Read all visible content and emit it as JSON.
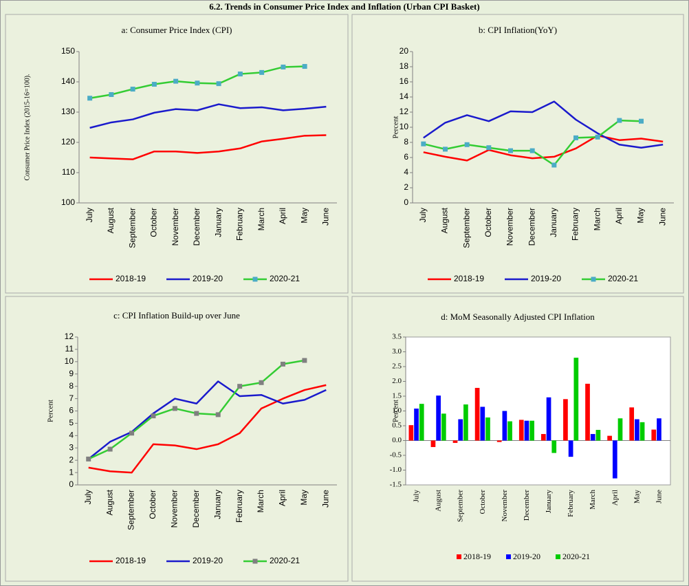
{
  "title": "6.2. Trends in Consumer Price Index and Inflation (Urban CPI Basket)",
  "chart_data": [
    {
      "type": "line",
      "title": "a: Consumer Price Index (CPI)",
      "y_label": "Consumer Price Index (2015-16=100).",
      "categories": [
        "July",
        "August",
        "September",
        "October",
        "November",
        "December",
        "January",
        "February",
        "March",
        "April",
        "May",
        "June"
      ],
      "ylim": [
        100,
        150
      ],
      "yticks": [
        100,
        110,
        120,
        130,
        140,
        150
      ],
      "series": [
        {
          "name": "2018-19",
          "color": "#ff0000",
          "values": [
            115,
            114.7,
            114.4,
            117,
            117,
            116.5,
            117,
            118,
            120.3,
            121.2,
            122.2,
            122.4
          ]
        },
        {
          "name": "2019-20",
          "color": "#1a1acc",
          "values": [
            124.8,
            126.6,
            127.6,
            129.8,
            131,
            130.6,
            132.6,
            131.3,
            131.6,
            130.6,
            131.1,
            131.8
          ]
        },
        {
          "name": "2020-21",
          "color": "#33cc33",
          "marker_color": "#4bacc6",
          "values": [
            134.6,
            135.8,
            137.6,
            139.2,
            140.2,
            139.6,
            139.4,
            142.6,
            143.1,
            144.9,
            145.1,
            null
          ]
        }
      ]
    },
    {
      "type": "line",
      "title": "b: CPI Inflation(YoY)",
      "y_label": "Percent",
      "categories": [
        "July",
        "August",
        "September",
        "October",
        "November",
        "December",
        "January",
        "February",
        "March",
        "April",
        "May",
        "June"
      ],
      "ylim": [
        0,
        20
      ],
      "yticks": [
        0,
        2,
        4,
        6,
        8,
        10,
        12,
        14,
        16,
        18,
        20
      ],
      "series": [
        {
          "name": "2018-19",
          "color": "#ff0000",
          "values": [
            6.7,
            6.1,
            5.6,
            7.0,
            6.3,
            5.9,
            6.1,
            7.2,
            8.9,
            8.3,
            8.5,
            8.1
          ]
        },
        {
          "name": "2019-20",
          "color": "#1a1acc",
          "values": [
            8.6,
            10.6,
            11.6,
            10.8,
            12.1,
            12.0,
            13.4,
            11.0,
            9.2,
            7.7,
            7.3,
            7.7
          ]
        },
        {
          "name": "2020-21",
          "color": "#33cc33",
          "marker_color": "#4bacc6",
          "values": [
            7.8,
            7.1,
            7.7,
            7.3,
            6.9,
            6.9,
            5.0,
            8.6,
            8.7,
            10.9,
            10.8,
            null
          ]
        }
      ]
    },
    {
      "type": "line",
      "title": "c: CPI Inflation  Build-up  over June",
      "y_label": "Percent",
      "categories": [
        "July",
        "August",
        "September",
        "October",
        "November",
        "December",
        "January",
        "February",
        "March",
        "April",
        "May",
        "June"
      ],
      "ylim": [
        0,
        12
      ],
      "yticks": [
        0,
        1,
        2,
        3,
        4,
        5,
        6,
        7,
        8,
        9,
        10,
        11,
        12
      ],
      "series": [
        {
          "name": "2018-19",
          "color": "#ff0000",
          "values": [
            1.4,
            1.1,
            1.0,
            3.3,
            3.2,
            2.9,
            3.3,
            4.2,
            6.2,
            7.0,
            7.7,
            8.1
          ]
        },
        {
          "name": "2019-20",
          "color": "#1a1acc",
          "values": [
            2.1,
            3.5,
            4.3,
            5.8,
            7.0,
            6.6,
            8.4,
            7.2,
            7.3,
            6.6,
            6.9,
            7.7
          ]
        },
        {
          "name": "2020-21",
          "color": "#33cc33",
          "marker_color": "#808080",
          "values": [
            2.1,
            2.9,
            4.2,
            5.6,
            6.2,
            5.8,
            5.7,
            8.0,
            8.3,
            9.8,
            10.1,
            null
          ]
        }
      ]
    },
    {
      "type": "bar",
      "title": "d: MoM Seasonally Adjusted CPI Inflation",
      "y_label": "Percent",
      "categories": [
        "July",
        "August",
        "September",
        "October",
        "November",
        "December",
        "January",
        "February",
        "March",
        "April",
        "May",
        "June"
      ],
      "ylim": [
        -1.5,
        3.5
      ],
      "yticks": [
        -1.5,
        {
          "value": -1,
          "label": "-1.0"
        },
        -0.5,
        {
          "value": 0,
          "label": "0.0"
        },
        0.5,
        {
          "value": 1,
          "label": "1.0"
        },
        1.5,
        {
          "value": 2,
          "label": "2.0"
        },
        2.5,
        {
          "value": 3,
          "label": "3.0"
        },
        3.5
      ],
      "series": [
        {
          "name": "2018-19",
          "color": "#ff0000",
          "values": [
            0.52,
            -0.22,
            -0.08,
            1.78,
            -0.05,
            0.7,
            0.22,
            1.4,
            1.92,
            0.16,
            1.12,
            0.37
          ]
        },
        {
          "name": "2019-20",
          "color": "#0000ff",
          "values": [
            1.08,
            1.52,
            0.72,
            1.14,
            1.0,
            0.67,
            1.46,
            -0.55,
            0.22,
            -1.28,
            0.72,
            0.75
          ]
        },
        {
          "name": "2020-21",
          "color": "#00cc00",
          "values": [
            1.24,
            0.91,
            1.22,
            0.78,
            0.65,
            0.67,
            -0.42,
            2.8,
            0.36,
            0.75,
            0.62,
            null
          ]
        }
      ]
    }
  ]
}
